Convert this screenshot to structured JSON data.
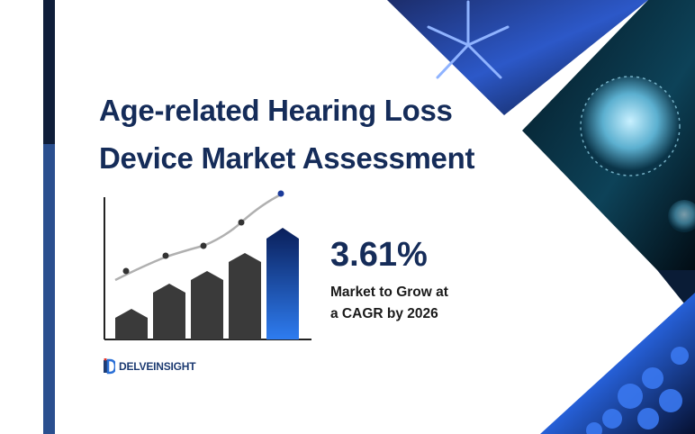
{
  "title": {
    "line1": "Age-related Hearing Loss",
    "line2": "Device Market Assessment"
  },
  "stat": {
    "value": "3.61%",
    "caption_line1": "Market to Grow at",
    "caption_line2": "a CAGR by 2026"
  },
  "logo": {
    "text": "DELVEINSIGHT"
  },
  "colors": {
    "title": "#152c59",
    "bar_gray": "#3a3a3a",
    "bar_highlight": "#0d2a6e",
    "accent_blue": "#2a4f8f"
  },
  "icons": [
    "bar-chart-icon",
    "delveinsight-logo-icon",
    "virus-image"
  ]
}
